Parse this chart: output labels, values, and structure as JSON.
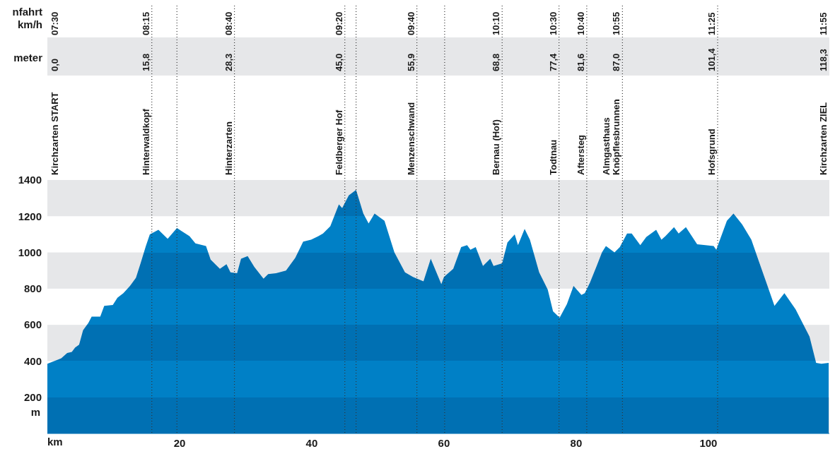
{
  "chart_data": {
    "type": "area",
    "xlabel": "km",
    "ylabel": "m",
    "color": "#0080c6",
    "x": [
      0.0,
      2.1,
      3.0,
      3.7,
      4.2,
      4.8,
      5.4,
      6.2,
      6.7,
      8.0,
      8.6,
      9.9,
      10.6,
      11.5,
      12.5,
      13.4,
      14.1,
      14.9,
      15.5,
      16.8,
      18.2,
      19.6,
      21.5,
      22.4,
      24.0,
      24.7,
      26.1,
      27.1,
      27.7,
      28.7,
      29.3,
      30.3,
      31.3,
      32.7,
      33.4,
      34.6,
      36.1,
      37.5,
      38.7,
      39.9,
      41.0,
      41.7,
      42.8,
      44.1,
      44.6,
      45.6,
      46.7,
      47.8,
      48.6,
      49.5,
      51.0,
      52.5,
      54.1,
      55.3,
      56.9,
      58.0,
      59.6,
      60.0,
      61.4,
      62.6,
      63.5,
      64.0,
      64.8,
      65.9,
      67.0,
      67.5,
      68.8,
      69.6,
      70.7,
      71.2,
      72.2,
      73.0,
      74.4,
      75.7,
      76.5,
      77.5,
      78.6,
      79.6,
      80.8,
      81.3,
      82.1,
      83.1,
      83.9,
      84.5,
      85.8,
      86.6,
      87.7,
      88.4,
      89.7,
      90.6,
      92.1,
      92.9,
      93.5,
      94.8,
      95.5,
      96.6,
      98.3,
      100.8,
      101.2,
      102.8,
      103.8,
      105.1,
      106.5,
      107.5,
      108.9,
      110.0,
      111.5,
      113.2,
      115.3,
      116.3,
      117.1,
      118.2
    ],
    "values": [
      385,
      415,
      445,
      450,
      475,
      490,
      570,
      610,
      645,
      645,
      705,
      710,
      750,
      775,
      815,
      860,
      940,
      1035,
      1100,
      1125,
      1075,
      1135,
      1090,
      1050,
      1035,
      960,
      910,
      935,
      890,
      885,
      965,
      980,
      920,
      855,
      880,
      885,
      900,
      970,
      1060,
      1070,
      1090,
      1105,
      1145,
      1265,
      1245,
      1315,
      1345,
      1215,
      1160,
      1215,
      1175,
      1000,
      890,
      865,
      840,
      965,
      825,
      865,
      910,
      1030,
      1040,
      1015,
      1030,
      925,
      965,
      925,
      940,
      1055,
      1100,
      1040,
      1130,
      1070,
      890,
      795,
      675,
      640,
      715,
      815,
      765,
      775,
      835,
      925,
      1000,
      1035,
      1000,
      1030,
      1105,
      1105,
      1040,
      1085,
      1125,
      1070,
      1090,
      1140,
      1105,
      1140,
      1045,
      1035,
      1015,
      1175,
      1215,
      1155,
      1070,
      965,
      820,
      705,
      775,
      685,
      535,
      390,
      385,
      390
    ],
    "xlim": [
      0,
      118.3
    ],
    "xticks": [
      20,
      40,
      60,
      80,
      100
    ],
    "ylim": [
      0,
      1400
    ],
    "yticks": [
      200,
      400,
      600,
      800,
      1000,
      1200,
      1400
    ],
    "bands": [
      {
        "axis": "y",
        "from": 1200,
        "to": 1400,
        "color": "#e6e7e9"
      },
      {
        "axis": "y",
        "from": 800,
        "to": 1000,
        "color": "#e6e7e9"
      },
      {
        "axis": "y",
        "from": 400,
        "to": 600,
        "color": "#e6e7e9"
      },
      {
        "axis": "y",
        "from": 0,
        "to": 200,
        "color": "#e6e7e9"
      }
    ],
    "annotations": [
      "Kirchzarten START",
      "Kirchzarten ZIEL",
      "nfahrt km/h",
      "07:30",
      "08:15",
      "08:40",
      "09:20",
      "09:40",
      "10:10",
      "10:30",
      "10:40",
      "10:55",
      "11:25",
      "11:55",
      "meter",
      "0,0",
      "15,8",
      "28,3",
      "45,0",
      "55,9",
      "68,8",
      "77,4",
      "81,6",
      "87,0",
      "101,4",
      "118,3"
    ],
    "ref_lines": [
      {
        "axis": "x",
        "value": 15.8,
        "label": "Hinterwaldkopf",
        "line_style": "dotted",
        "color": "#333333"
      },
      {
        "axis": "x",
        "value": 19.6,
        "line_style": "dotted",
        "color": "#333333"
      },
      {
        "axis": "x",
        "value": 28.3,
        "label": "Hinterzarten",
        "line_style": "dotted",
        "color": "#333333"
      },
      {
        "axis": "x",
        "value": 45.0,
        "label": "Feldberger Hof",
        "line_style": "dotted",
        "color": "#333333"
      },
      {
        "axis": "x",
        "value": 46.7,
        "line_style": "dotted",
        "color": "#333333"
      },
      {
        "axis": "x",
        "value": 55.9,
        "label": "Menzenschwand",
        "line_style": "dotted",
        "color": "#333333"
      },
      {
        "axis": "x",
        "value": 60.1,
        "line_style": "dotted",
        "color": "#333333"
      },
      {
        "axis": "x",
        "value": 68.8,
        "label": "Bernau (Hof)",
        "line_style": "dotted",
        "color": "#333333"
      },
      {
        "axis": "x",
        "value": 77.4,
        "label": "Todtnau",
        "line_style": "dotted",
        "color": "#333333"
      },
      {
        "axis": "x",
        "value": 81.6,
        "label": "Aftersteg",
        "line_style": "dotted",
        "color": "#333333"
      },
      {
        "axis": "x",
        "value": 87.0,
        "label": "Almgasthaus Knöpflesbrunnen",
        "line_style": "dotted",
        "color": "#333333"
      },
      {
        "axis": "x",
        "value": 101.4,
        "label": "Hofsgrund",
        "line_style": "dotted",
        "color": "#333333"
      }
    ]
  }
}
